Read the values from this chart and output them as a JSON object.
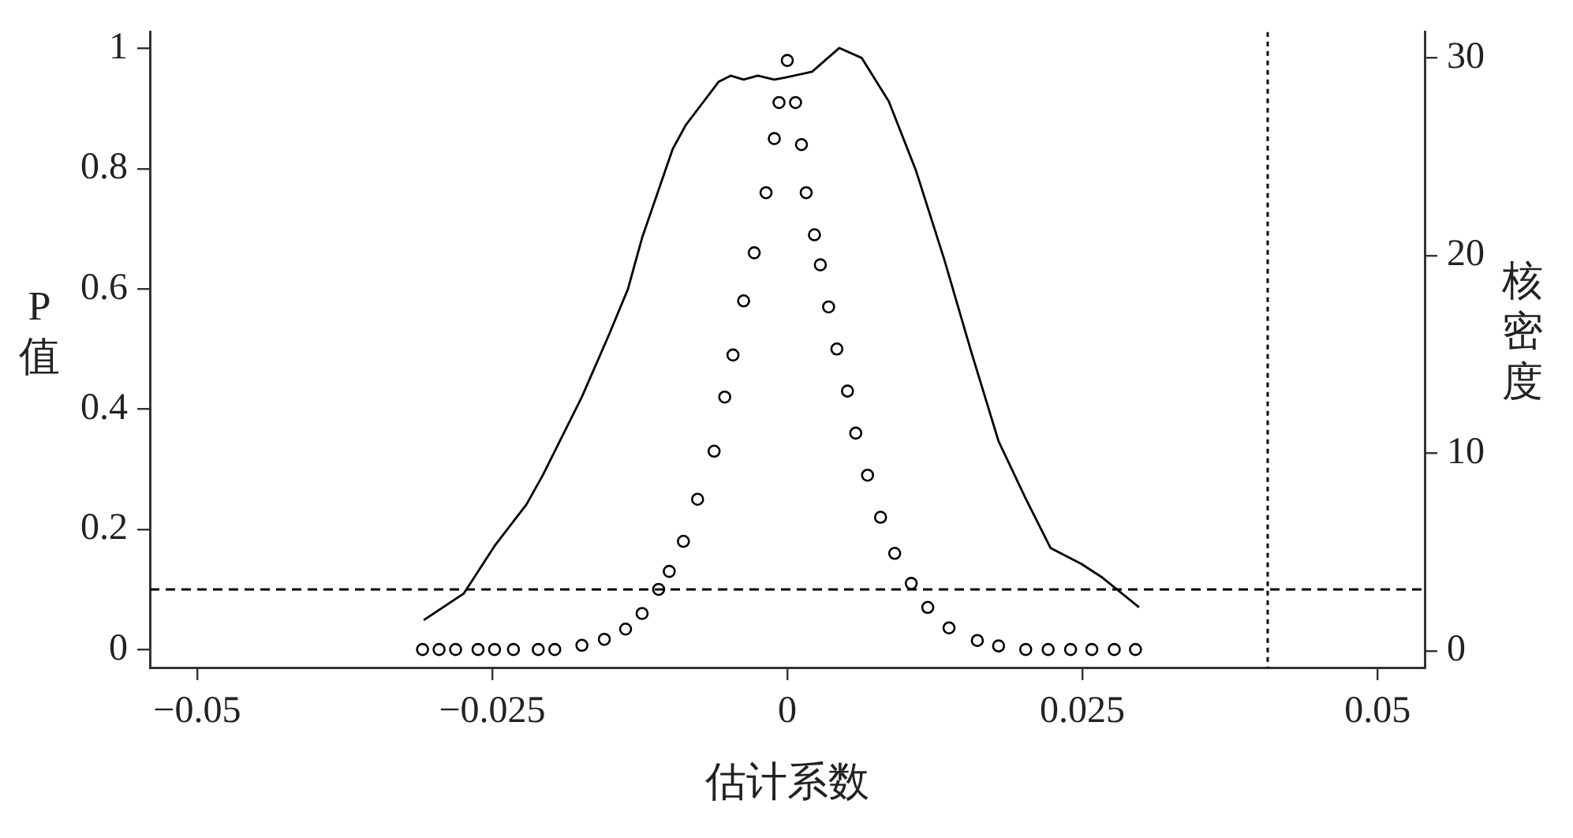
{
  "chart_data": {
    "type": "scatter",
    "xlabel": "估计系数",
    "ylabel": "P值",
    "y2label": "核密度",
    "xlim": [
      -0.054,
      0.054
    ],
    "xticks": [
      {
        "value": -0.05,
        "label": "−0.05"
      },
      {
        "value": -0.025,
        "label": "−0.025"
      },
      0,
      0.025,
      0.05
    ],
    "ylim": [
      -0.03,
      1.027
    ],
    "yticks": [
      0,
      0.2,
      0.4,
      0.6,
      0.8,
      1
    ],
    "y2lim": [
      -0.85,
      31.3
    ],
    "y2ticks": [
      0,
      10,
      20,
      30
    ],
    "grid": false,
    "legend": false,
    "ref_lines": [
      {
        "axis": "y",
        "value": 0.1,
        "line_style": "dashed",
        "color": "#000000"
      },
      {
        "axis": "x",
        "value": 0.0407,
        "line_style": "dotted",
        "color": "#000000"
      }
    ],
    "series": [
      {
        "type": "scatter",
        "color": "#000000",
        "marker": "circle",
        "x": [
          -0.0309,
          -0.0295,
          -0.0281,
          -0.0262,
          -0.0248,
          -0.0232,
          -0.0211,
          -0.0197,
          -0.0174,
          -0.0155,
          -0.0137,
          -0.0123,
          -0.0109,
          -0.01,
          -0.0088,
          -0.0076,
          -0.0062,
          -0.0053,
          -0.0046,
          -0.0037,
          -0.0028,
          -0.0018,
          -0.0011,
          -0.0007,
          0.0,
          0.0007,
          0.0012,
          0.0016,
          0.0023,
          0.0028,
          0.0035,
          0.0042,
          0.0051,
          0.0058,
          0.0068,
          0.0079,
          0.0091,
          0.0105,
          0.0119,
          0.0137,
          0.0161,
          0.0179,
          0.0202,
          0.0221,
          0.024,
          0.0258,
          0.0277,
          0.0295
        ],
        "values": [
          0,
          0,
          0,
          0,
          0,
          0,
          0,
          0,
          0.007,
          0.017,
          0.034,
          0.06,
          0.1,
          0.13,
          0.18,
          0.25,
          0.33,
          0.42,
          0.49,
          0.58,
          0.66,
          0.76,
          0.85,
          0.91,
          0.98,
          0.91,
          0.84,
          0.76,
          0.69,
          0.64,
          0.57,
          0.5,
          0.43,
          0.36,
          0.29,
          0.22,
          0.16,
          0.11,
          0.07,
          0.036,
          0.015,
          0.006,
          0,
          0,
          0,
          0,
          0,
          0
        ]
      },
      {
        "type": "line",
        "axis": "y2",
        "color": "#000000",
        "marker": "none",
        "line_style": "solid",
        "x": [
          -0.0308,
          -0.0274,
          -0.0248,
          -0.0221,
          -0.0207,
          -0.0174,
          -0.0151,
          -0.0135,
          -0.0123,
          -0.0097,
          -0.0086,
          -0.0058,
          -0.0048,
          -0.0037,
          -0.0025,
          -0.0011,
          -0.0002,
          0.0021,
          0.0044,
          0.0063,
          0.0086,
          0.0109,
          0.0133,
          0.0156,
          0.0179,
          0.0202,
          0.0223,
          0.0249,
          0.0267,
          0.0298
        ],
        "values": [
          1.55,
          2.9,
          5.3,
          7.4,
          8.9,
          12.85,
          16.0,
          18.3,
          20.9,
          25.4,
          26.6,
          28.8,
          29.1,
          28.9,
          29.1,
          28.9,
          29.0,
          29.3,
          30.5,
          30.0,
          27.8,
          24.3,
          19.8,
          15.1,
          10.6,
          7.7,
          5.2,
          4.4,
          3.7,
          2.2
        ]
      }
    ]
  }
}
